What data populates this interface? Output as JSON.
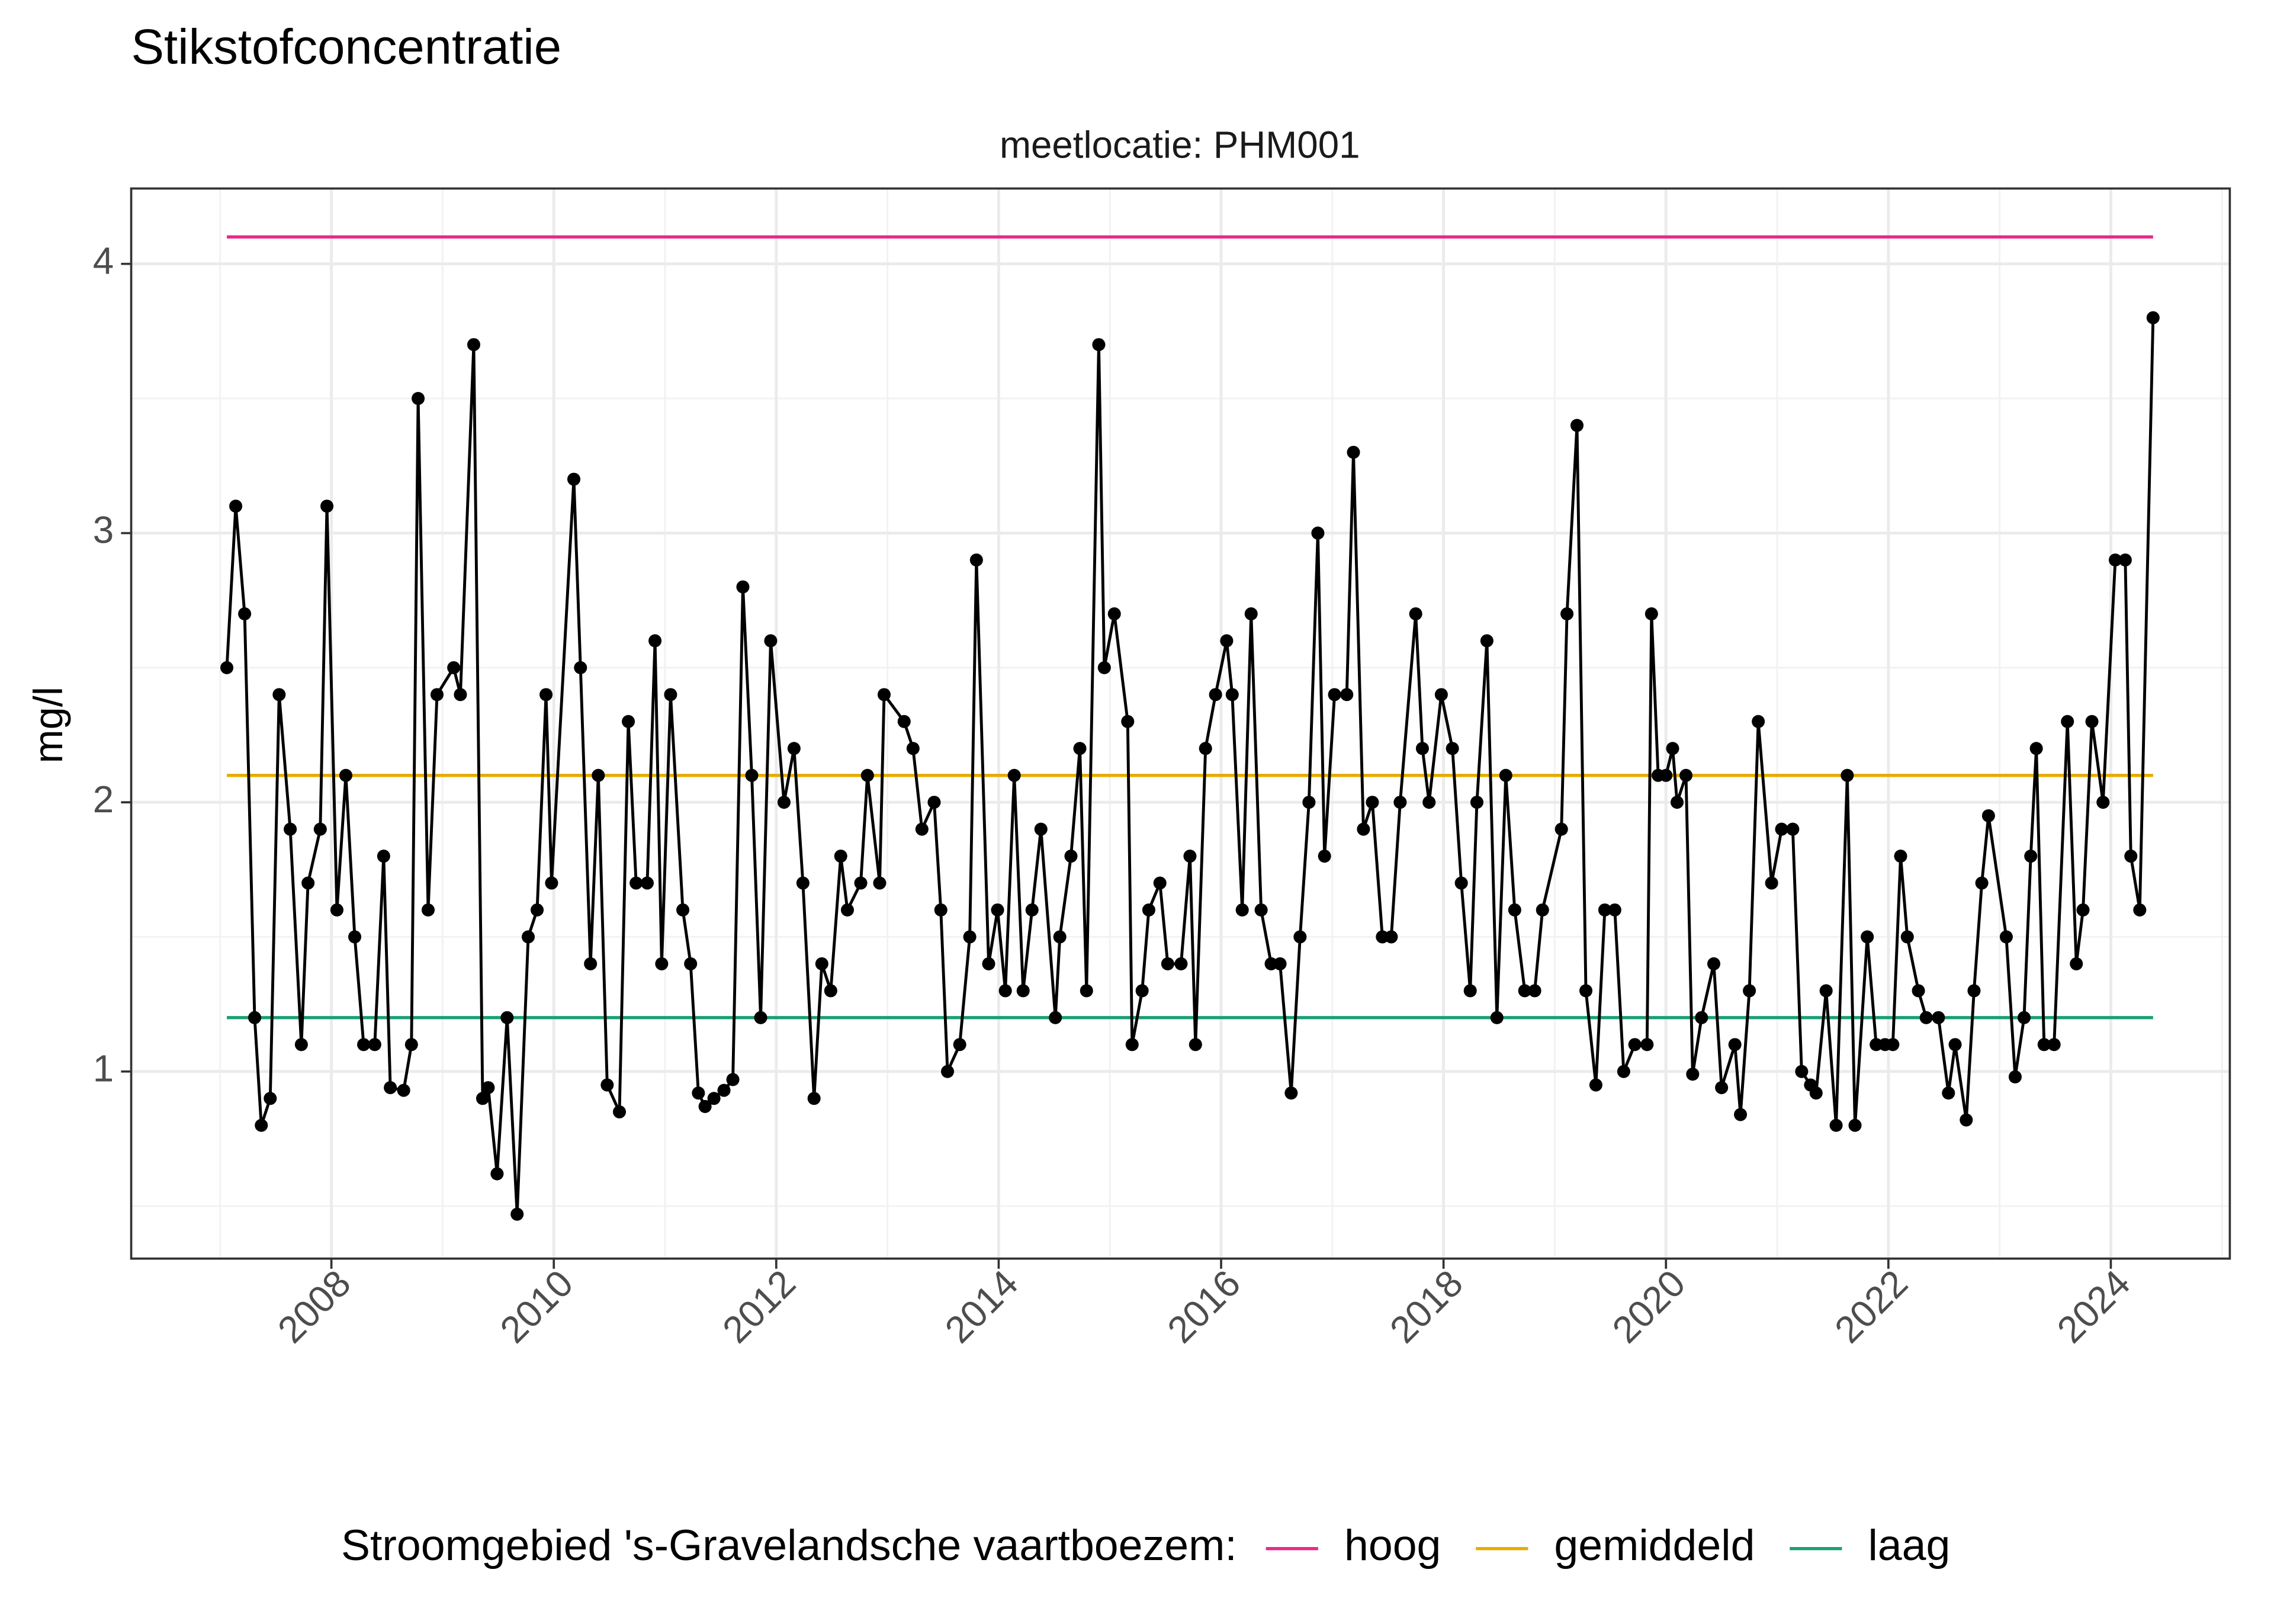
{
  "chart_data": {
    "type": "line",
    "title": "Stikstofconcentratie",
    "subtitle": "meetlocatie: PHM001",
    "y_label": "mg/l",
    "legend_title": "Stroomgebied 's-Gravelandsche vaartboezem:",
    "legend_position": "bottom",
    "grid": true,
    "xlim": [
      2006.2,
      2025.07
    ],
    "ylim": [
      0.305,
      4.28
    ],
    "xticks": [
      2008,
      2010,
      2012,
      2014,
      2016,
      2018,
      2020,
      2022,
      2024
    ],
    "yticks": [
      1,
      2,
      3,
      4
    ],
    "points": {
      "color": "#000000",
      "x": [
        2007.06,
        2007.14,
        2007.22,
        2007.31,
        2007.37,
        2007.45,
        2007.53,
        2007.63,
        2007.73,
        2007.79,
        2007.9,
        2007.96,
        2008.05,
        2008.13,
        2008.21,
        2008.29,
        2008.39,
        2008.47,
        2008.53,
        2008.65,
        2008.72,
        2008.78,
        2008.87,
        2008.95,
        2009.1,
        2009.16,
        2009.28,
        2009.36,
        2009.41,
        2009.49,
        2009.58,
        2009.67,
        2009.77,
        2009.85,
        2009.93,
        2009.98,
        2010.18,
        2010.24,
        2010.33,
        2010.4,
        2010.48,
        2010.59,
        2010.67,
        2010.74,
        2010.84,
        2010.91,
        2010.97,
        2011.05,
        2011.16,
        2011.23,
        2011.3,
        2011.36,
        2011.44,
        2011.53,
        2011.61,
        2011.7,
        2011.78,
        2011.86,
        2011.95,
        2012.07,
        2012.16,
        2012.24,
        2012.34,
        2012.41,
        2012.49,
        2012.58,
        2012.64,
        2012.76,
        2012.82,
        2012.93,
        2012.97,
        2013.15,
        2013.23,
        2013.31,
        2013.42,
        2013.48,
        2013.54,
        2013.65,
        2013.74,
        2013.8,
        2013.91,
        2013.99,
        2014.06,
        2014.14,
        2014.22,
        2014.3,
        2014.38,
        2014.51,
        2014.55,
        2014.65,
        2014.73,
        2014.79,
        2014.9,
        2014.95,
        2015.04,
        2015.16,
        2015.2,
        2015.29,
        2015.35,
        2015.45,
        2015.52,
        2015.64,
        2015.72,
        2015.77,
        2015.86,
        2015.95,
        2016.05,
        2016.1,
        2016.19,
        2016.27,
        2016.36,
        2016.45,
        2016.53,
        2016.63,
        2016.71,
        2016.79,
        2016.87,
        2016.93,
        2017.02,
        2017.13,
        2017.19,
        2017.28,
        2017.36,
        2017.45,
        2017.53,
        2017.61,
        2017.75,
        2017.81,
        2017.87,
        2017.98,
        2018.08,
        2018.16,
        2018.24,
        2018.3,
        2018.39,
        2018.48,
        2018.56,
        2018.64,
        2018.73,
        2018.82,
        2018.89,
        2019.06,
        2019.11,
        2019.2,
        2019.28,
        2019.37,
        2019.45,
        2019.54,
        2019.62,
        2019.72,
        2019.83,
        2019.87,
        2019.93,
        2020.0,
        2020.06,
        2020.1,
        2020.18,
        2020.24,
        2020.32,
        2020.43,
        2020.5,
        2020.62,
        2020.67,
        2020.75,
        2020.83,
        2020.95,
        2021.04,
        2021.14,
        2021.22,
        2021.3,
        2021.35,
        2021.44,
        2021.53,
        2021.63,
        2021.7,
        2021.81,
        2021.89,
        2021.97,
        2022.04,
        2022.11,
        2022.17,
        2022.27,
        2022.34,
        2022.45,
        2022.54,
        2022.6,
        2022.7,
        2022.77,
        2022.84,
        2022.9,
        2023.06,
        2023.14,
        2023.22,
        2023.28,
        2023.33,
        2023.4,
        2023.49,
        2023.61,
        2023.69,
        2023.75,
        2023.83,
        2023.93,
        2024.04,
        2024.13,
        2024.18,
        2024.26,
        2024.38
      ],
      "values": [
        2.5,
        3.1,
        2.7,
        1.2,
        0.8,
        0.9,
        2.4,
        1.9,
        1.1,
        1.7,
        1.9,
        3.1,
        1.6,
        2.1,
        1.5,
        1.1,
        1.1,
        1.8,
        0.94,
        0.93,
        1.1,
        3.5,
        1.6,
        2.4,
        2.5,
        2.4,
        3.7,
        0.9,
        0.94,
        0.62,
        1.2,
        0.47,
        1.5,
        1.6,
        2.4,
        1.7,
        3.2,
        2.5,
        1.4,
        2.1,
        0.95,
        0.85,
        2.3,
        1.7,
        1.7,
        2.6,
        1.4,
        2.4,
        1.6,
        1.4,
        0.92,
        0.87,
        0.9,
        0.93,
        0.97,
        2.8,
        2.1,
        1.2,
        2.6,
        2.0,
        2.2,
        1.7,
        0.9,
        1.4,
        1.3,
        1.8,
        1.6,
        1.7,
        2.1,
        1.7,
        2.4,
        2.3,
        2.2,
        1.9,
        2.0,
        1.6,
        1.0,
        1.1,
        1.5,
        2.9,
        1.4,
        1.6,
        1.3,
        2.1,
        1.3,
        1.6,
        1.9,
        1.2,
        1.5,
        1.8,
        2.2,
        1.3,
        3.7,
        2.5,
        2.7,
        2.3,
        1.1,
        1.3,
        1.6,
        1.7,
        1.4,
        1.4,
        1.8,
        1.1,
        2.2,
        2.4,
        2.6,
        2.4,
        1.6,
        2.7,
        1.6,
        1.4,
        1.4,
        0.92,
        1.5,
        2.0,
        3.0,
        1.8,
        2.4,
        2.4,
        3.3,
        1.9,
        2.0,
        1.5,
        1.5,
        2.0,
        2.7,
        2.2,
        2.0,
        2.4,
        2.2,
        1.7,
        1.3,
        2.0,
        2.6,
        1.2,
        2.1,
        1.6,
        1.3,
        1.3,
        1.6,
        1.9,
        2.7,
        3.4,
        1.3,
        0.95,
        1.6,
        1.6,
        1.0,
        1.1,
        1.1,
        2.7,
        2.1,
        2.1,
        2.2,
        2.0,
        2.1,
        0.99,
        1.2,
        1.4,
        0.94,
        1.1,
        0.84,
        1.3,
        2.3,
        1.7,
        1.9,
        1.9,
        1.0,
        0.95,
        0.92,
        1.3,
        0.8,
        2.1,
        0.8,
        1.5,
        1.1,
        1.1,
        1.1,
        1.8,
        1.5,
        1.3,
        1.2,
        1.2,
        0.92,
        1.1,
        0.82,
        1.3,
        1.7,
        1.95,
        1.5,
        0.98,
        1.2,
        1.8,
        2.2,
        1.1,
        1.1,
        2.3,
        1.4,
        1.6,
        2.3,
        2.0,
        2.9,
        2.9,
        1.8,
        1.6,
        3.8
      ]
    },
    "series": [
      {
        "name": "hoog",
        "color": "#e7298a",
        "x": [
          2007.06,
          2024.38
        ],
        "values": [
          4.1,
          4.1
        ]
      },
      {
        "name": "gemiddeld",
        "color": "#e6ab02",
        "x": [
          2007.06,
          2024.38
        ],
        "values": [
          2.1,
          2.1
        ]
      },
      {
        "name": "laag",
        "color": "#1b9e77",
        "x": [
          2007.06,
          2024.38
        ],
        "values": [
          1.2,
          1.2
        ]
      }
    ]
  }
}
